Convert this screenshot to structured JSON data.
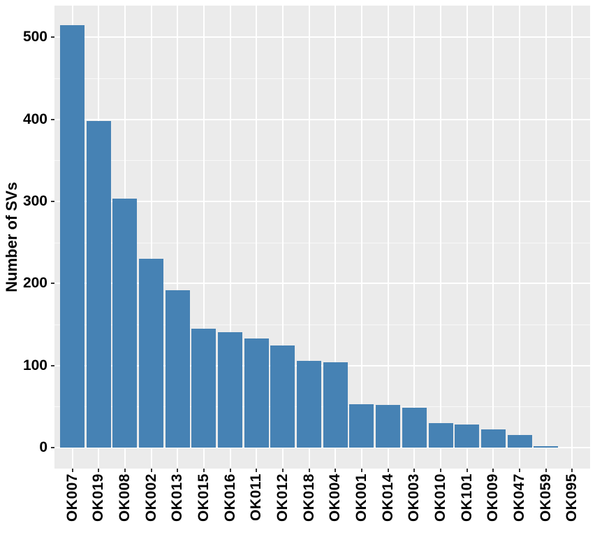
{
  "chart_data": {
    "type": "bar",
    "title": "",
    "xlabel": "",
    "ylabel": "Number of SVs",
    "categories": [
      "OK007",
      "OK019",
      "OK008",
      "OK002",
      "OK013",
      "OK015",
      "OK016",
      "OK011",
      "OK012",
      "OK018",
      "OK004",
      "OK001",
      "OK014",
      "OK003",
      "OK010",
      "OK101",
      "OK009",
      "OK047",
      "OK059",
      "OK095"
    ],
    "values": [
      515,
      398,
      303,
      230,
      192,
      145,
      141,
      133,
      124,
      106,
      104,
      53,
      52,
      49,
      30,
      28,
      22,
      15,
      2,
      0
    ],
    "y_ticks": [
      0,
      100,
      200,
      300,
      400,
      500
    ],
    "y_minor_ticks": [
      50,
      150,
      250,
      350,
      450
    ],
    "ylim": [
      -25,
      540
    ],
    "grid": "major-and-minor-horizontal, major-vertical-at-categories",
    "legend": "none",
    "colors": {
      "bar_fill": "#4682B4",
      "panel_background": "#EBEBEB",
      "gridline": "#FFFFFF",
      "tick_mark": "#333333",
      "axis_text": "#000000",
      "page_background": "#FFFFFF"
    }
  }
}
